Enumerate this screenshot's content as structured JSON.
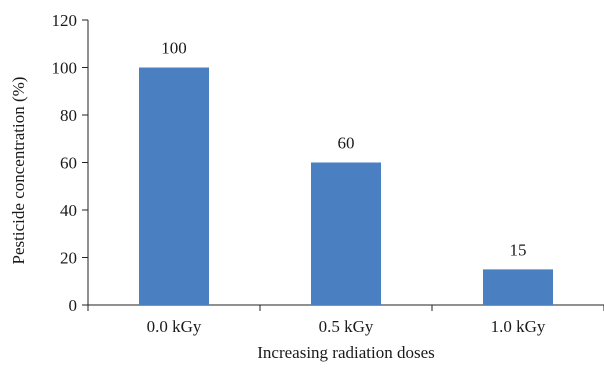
{
  "chart_data": {
    "type": "bar",
    "title": "",
    "xlabel": "Increasing radiation doses",
    "ylabel": "Pesticide concentration (%)",
    "categories": [
      "0.0 kGy",
      "0.5 kGy",
      "1.0 kGy"
    ],
    "values": [
      100,
      60,
      15
    ],
    "data_labels": [
      "100",
      "60",
      "15"
    ],
    "ylim": [
      0,
      120
    ],
    "yticks": [
      0,
      20,
      40,
      60,
      80,
      100,
      120
    ],
    "ytick_labels": [
      "0",
      "20",
      "40",
      "60",
      "80",
      "100",
      "120"
    ],
    "bar_color": "#4a7fc1",
    "grid": false,
    "legend": "none"
  }
}
